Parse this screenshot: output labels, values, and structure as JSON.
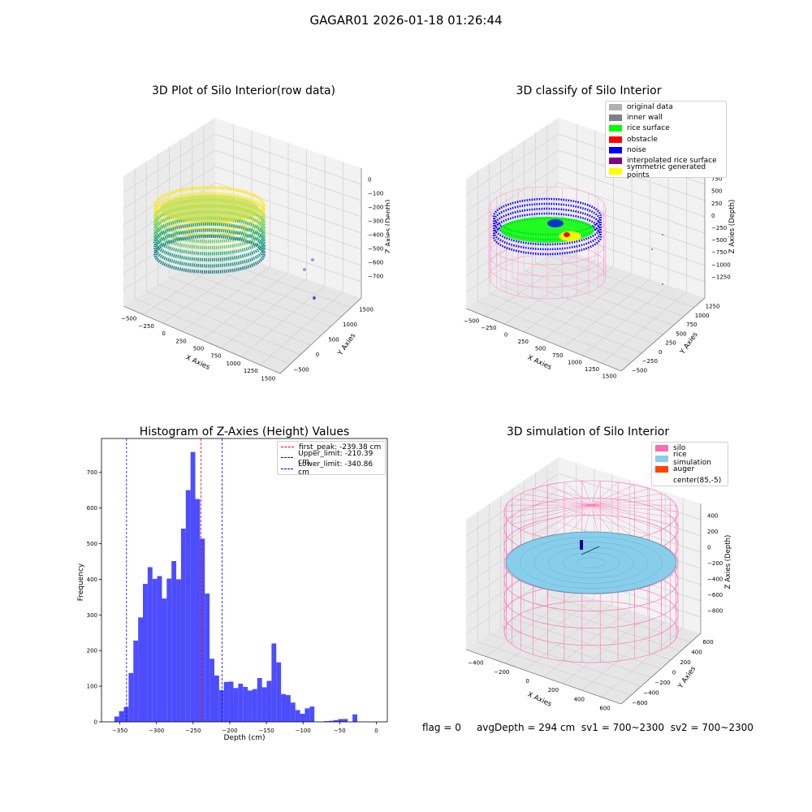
{
  "figure_title": "GAGAR01 2026-01-18 01:26:44",
  "footer": {
    "flag": "flag = 0",
    "avg_depth": "avgDepth = 294 cm",
    "sv1": "sv1 = 700~2300",
    "sv2": "sv2 = 700~2300"
  },
  "colors": {
    "histogram_bar": "#4d4dff",
    "first_peak_line": "#ff0000",
    "limit_line": "#0000ff",
    "silo_wire": "#ff69b4",
    "rice_surface": "#87ceeb",
    "auger": "#ff4500",
    "noise": "#0000ff",
    "rice_green": "#00ff00"
  },
  "chart_data": [
    {
      "type": "scatter",
      "projection": "3d",
      "title": "3D Plot of Silo Interior(row data)",
      "xlabel": "X Axies",
      "ylabel": "Y Axies",
      "zlabel": "Z Axies (Depth)",
      "x_ticks": [
        "−500",
        "−250",
        "0",
        "250",
        "500",
        "750",
        "1000",
        "1250",
        "1500"
      ],
      "y_ticks": [
        "−500",
        "0",
        "500",
        "1000",
        "1500"
      ],
      "z_ticks": [
        "0",
        "−100",
        "−200",
        "−300",
        "−400",
        "−500",
        "−600",
        "−700"
      ],
      "colormap": "viridis",
      "description_points": "ring of points centered near (85,-5), radius ~ 500, depth -150 to -500; few outliers near x 1000-1300"
    },
    {
      "type": "scatter",
      "projection": "3d",
      "title": "3D classify of Silo Interior",
      "xlabel": "X Axies",
      "ylabel": "Y Axies",
      "zlabel": "Z Axies (Depth)",
      "x_ticks": [
        "−500",
        "−250",
        "0",
        "250",
        "500",
        "750",
        "1000",
        "1250",
        "1500"
      ],
      "y_ticks": [
        "−500",
        "−250",
        "0",
        "250",
        "500",
        "750",
        "1000",
        "1250"
      ],
      "z_ticks": [
        "750",
        "500",
        "250",
        "0",
        "−250",
        "−500",
        "−750",
        "−1000",
        "−1250"
      ],
      "legend": [
        {
          "label": "original data",
          "color": "#b0b0b0"
        },
        {
          "label": "inner wall",
          "color": "#808080"
        },
        {
          "label": "rice surface",
          "color": "#00ff00"
        },
        {
          "label": "obstacle",
          "color": "#ff0000"
        },
        {
          "label": "noise",
          "color": "#0000ff"
        },
        {
          "label": "interpolated rice surface",
          "color": "#800080"
        },
        {
          "label": "symmetric generated points",
          "color": "#ffff00"
        }
      ]
    },
    {
      "type": "bar",
      "title": "Histogram of Z-Axies (Height) Values",
      "xlabel": "Depth (cm)",
      "ylabel": "Frequency",
      "xlim": [
        -375,
        15
      ],
      "ylim": [
        0,
        795
      ],
      "x_ticks": [
        -350,
        -300,
        -250,
        -200,
        -150,
        -100,
        -50,
        0
      ],
      "y_ticks": [
        0,
        100,
        200,
        300,
        400,
        500,
        600,
        700
      ],
      "bin_edges_start": -357.5,
      "bin_width": 6.5,
      "values": [
        15,
        30,
        42,
        137,
        228,
        293,
        387,
        434,
        401,
        409,
        346,
        402,
        451,
        400,
        542,
        650,
        757,
        625,
        514,
        360,
        177,
        130,
        89,
        112,
        113,
        95,
        107,
        98,
        88,
        92,
        123,
        97,
        115,
        220,
        167,
        78,
        75,
        54,
        33,
        23,
        38,
        43,
        0,
        0,
        2,
        3,
        5,
        8,
        8,
        0,
        21
      ],
      "vlines": [
        {
          "label": "first_peak: -239.38 cm",
          "x": -239.38,
          "color": "#ff0000"
        },
        {
          "label": "Upper_limit: -210.39 cm",
          "x": -210.39,
          "color": "#0000ff"
        },
        {
          "label": "Lower_limit: -340.86 cm",
          "x": -340.86,
          "color": "#0000ff"
        }
      ]
    },
    {
      "type": "surface",
      "projection": "3d",
      "title": "3D simulation of Silo Interior",
      "xlabel": "X Axies",
      "ylabel": "Y Axies",
      "zlabel": "Z Axies (Depth)",
      "x_ticks": [
        "−400",
        "−200",
        "0",
        "200",
        "400",
        "600"
      ],
      "y_ticks": [
        "−600",
        "−400",
        "−200",
        "0",
        "200",
        "400",
        "600"
      ],
      "z_ticks": [
        "400",
        "200",
        "0",
        "−200",
        "−400",
        "−600",
        "−800"
      ],
      "legend": [
        {
          "label": "silo",
          "color": "#ff69b4"
        },
        {
          "label": "rice simulation",
          "color": "#87ceeb"
        },
        {
          "label": "auger",
          "color": "#ff4500"
        },
        {
          "label": "center(85,-5)",
          "color": ""
        }
      ]
    }
  ]
}
